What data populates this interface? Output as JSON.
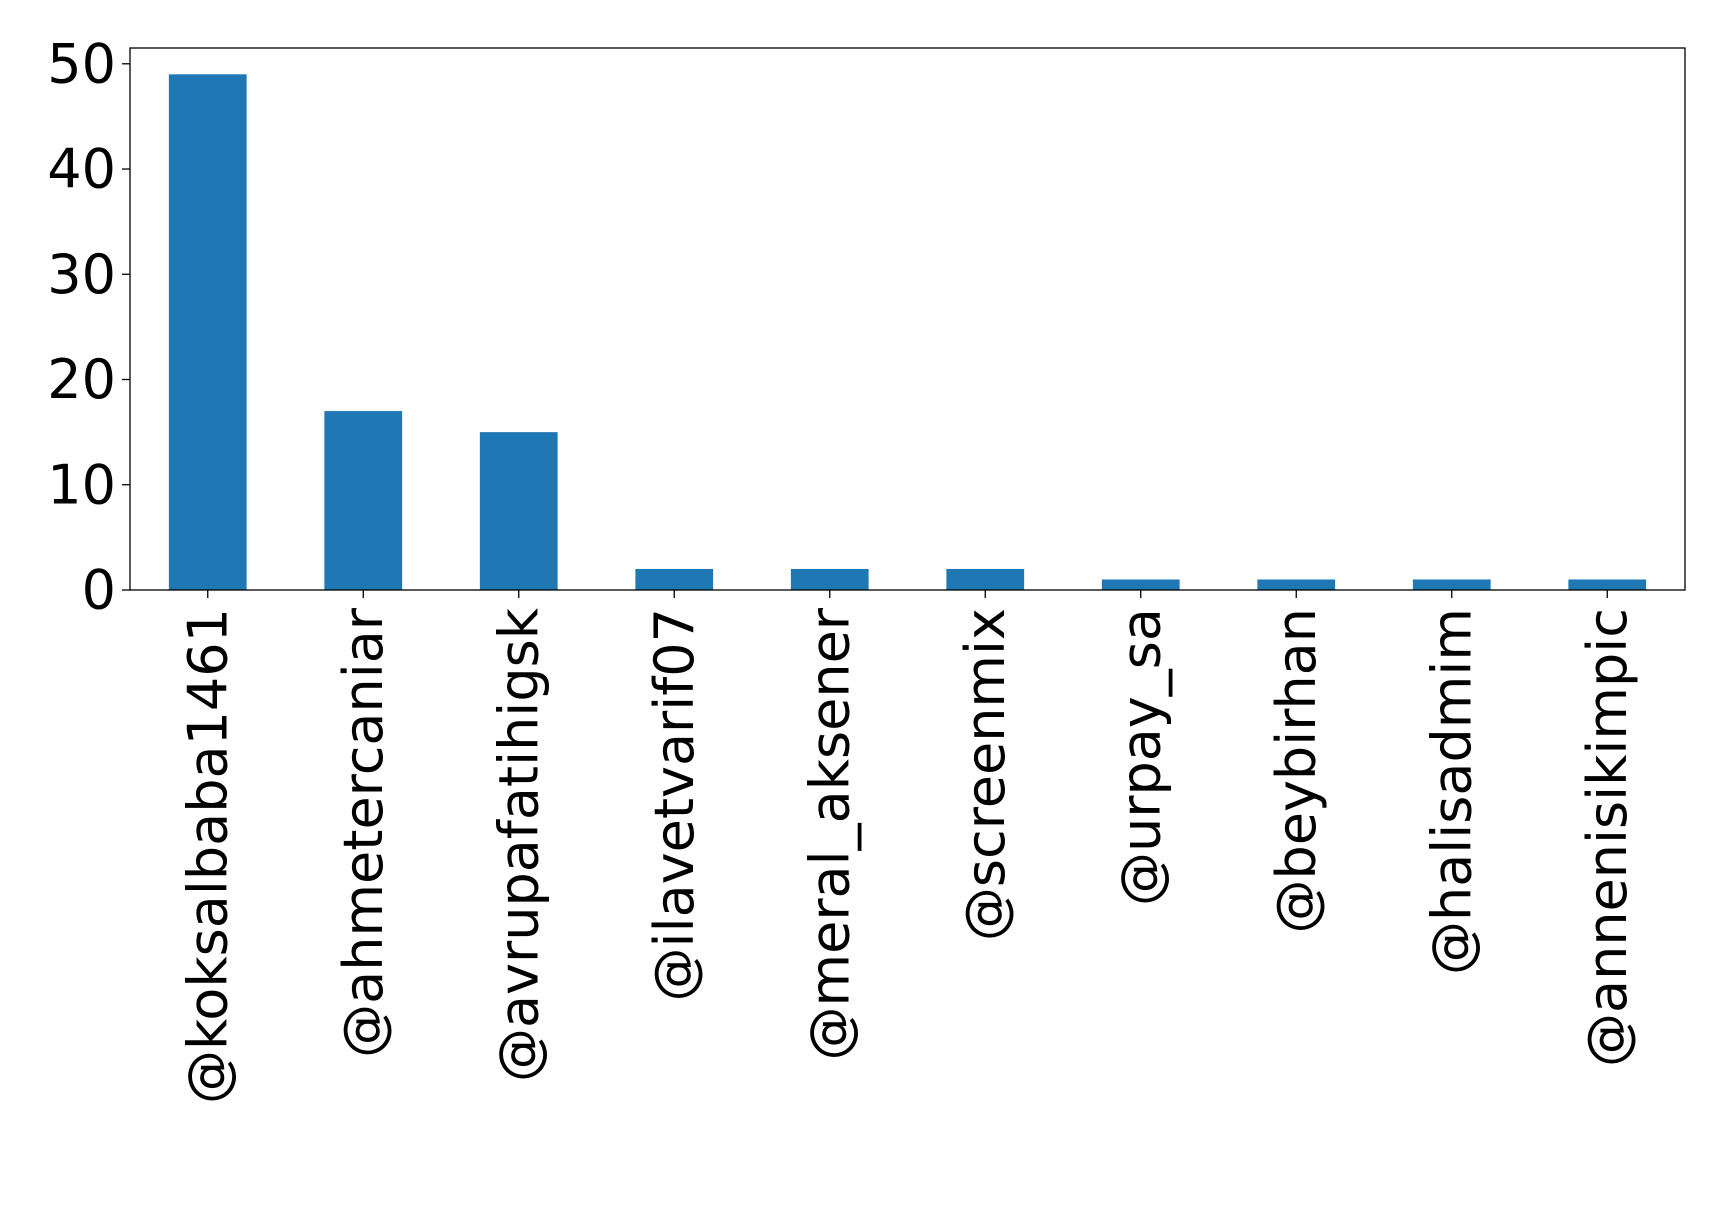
{
  "chart_data": {
    "type": "bar",
    "title": "",
    "xlabel": "",
    "ylabel": "",
    "categories": [
      "@koksalbaba1461",
      "@ahmetercaniar",
      "@avrupafatihigsk",
      "@ilavetvarif07",
      "@meral_aksener",
      "@screenmix",
      "@urpay_sa",
      "@beybirhan",
      "@halisadmim",
      "@annenisikimpic"
    ],
    "values": [
      49,
      17,
      15,
      2,
      2,
      2,
      1,
      1,
      1,
      1
    ],
    "ylim": [
      0,
      51.5
    ],
    "yticks": [
      0,
      10,
      20,
      30,
      40,
      50
    ],
    "grid": false,
    "legend": "none",
    "bar_color": "#1f77b4"
  }
}
